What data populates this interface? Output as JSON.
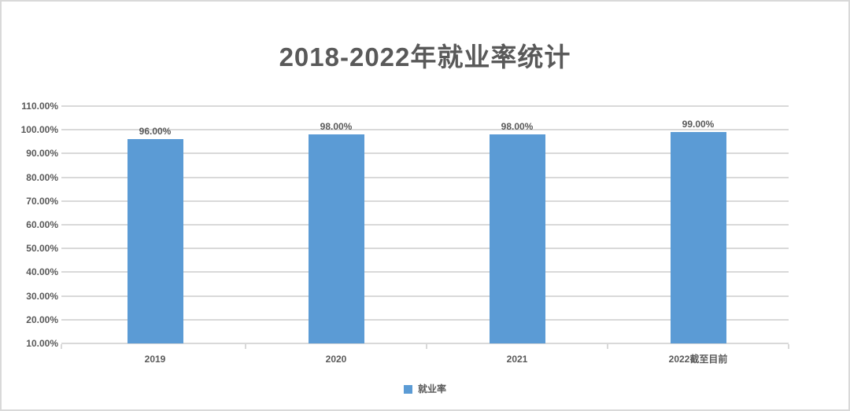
{
  "page": {
    "background": "#ffffff",
    "border_color": "#d9d9d9"
  },
  "chart_data": {
    "type": "bar",
    "title": "2018-2022年就业率统计",
    "categories": [
      "2019",
      "2020",
      "2021",
      "2022截至目前"
    ],
    "series": [
      {
        "name": "就业率",
        "values": [
          96,
          98,
          98,
          99
        ],
        "value_labels": [
          "96.00%",
          "98.00%",
          "98.00%",
          "99.00%"
        ],
        "color": "#5B9BD5"
      }
    ],
    "xlabel": "",
    "ylabel": "",
    "ylim": [
      10,
      110
    ],
    "y_ticks": [
      {
        "v": 110,
        "label": "110.00%"
      },
      {
        "v": 100,
        "label": "100.00%"
      },
      {
        "v": 90,
        "label": "90.00%"
      },
      {
        "v": 80,
        "label": "80.00%"
      },
      {
        "v": 70,
        "label": "70.00%"
      },
      {
        "v": 60,
        "label": "60.00%"
      },
      {
        "v": 50,
        "label": "50.00%"
      },
      {
        "v": 40,
        "label": "40.00%"
      },
      {
        "v": 30,
        "label": "30.00%"
      },
      {
        "v": 20,
        "label": "20.00%"
      },
      {
        "v": 10,
        "label": "10.00%"
      }
    ],
    "grid": true,
    "legend": {
      "position": "bottom",
      "label": "就业率",
      "swatch_color": "#5B9BD5"
    },
    "colors": {
      "text": "#595959",
      "grid": "#d9d9d9",
      "axis": "#d9d9d9"
    }
  }
}
